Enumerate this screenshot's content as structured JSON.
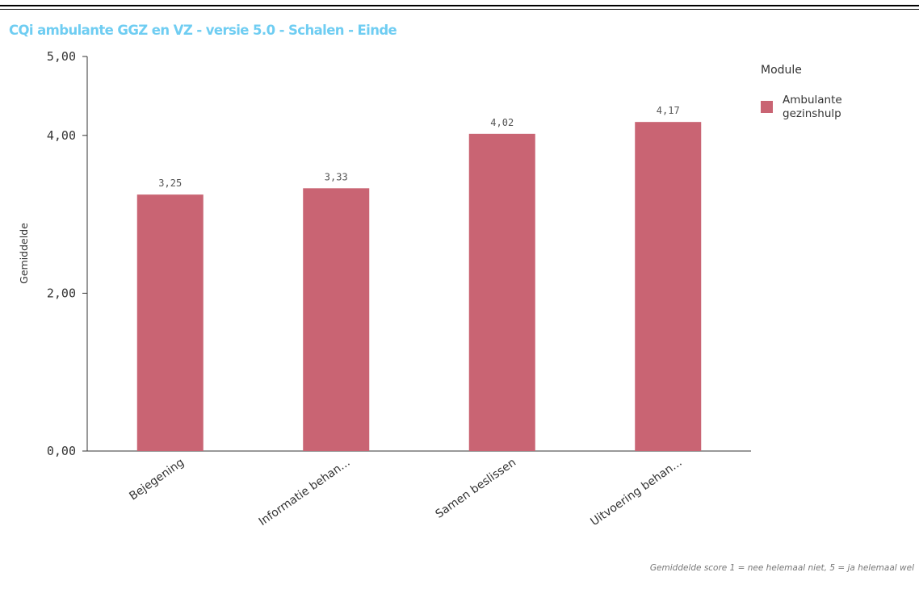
{
  "title": "CQi ambulante GGZ en VZ - versie 5.0 - Schalen - Einde",
  "footnote": "Gemiddelde score 1 = nee helemaal niet, 5 = ja helemaal wel",
  "legend": {
    "title": "Module",
    "items": [
      {
        "label": "Ambulante gezinshulp",
        "color": "#c96473"
      }
    ]
  },
  "chart_data": {
    "type": "bar",
    "categories": [
      "Bejegening",
      "Informatie behan...",
      "Samen beslissen",
      "Uitvoering behan..."
    ],
    "series": [
      {
        "name": "Ambulante gezinshulp",
        "values": [
          3.25,
          3.33,
          4.02,
          4.17
        ],
        "color": "#c96473"
      }
    ],
    "value_labels": [
      "3,25",
      "3,33",
      "4,02",
      "4,17"
    ],
    "ylabel": "Gemiddelde",
    "ylim": [
      0,
      5
    ],
    "yticks": [
      0,
      2,
      4,
      5
    ],
    "ytick_labels": [
      "0,00",
      "2,00",
      "4,00",
      "5,00"
    ],
    "grid": false,
    "legend_position": "top-right"
  }
}
